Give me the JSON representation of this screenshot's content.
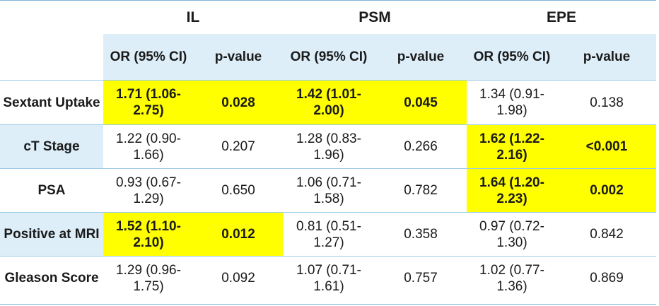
{
  "groups": [
    "IL",
    "PSM",
    "EPE"
  ],
  "subheaders": {
    "or": "OR (95% CI)",
    "p": "p-value"
  },
  "rows": [
    {
      "label": "Sextant Uptake",
      "il_or": "1.71 (1.06-2.75)",
      "il_p": "0.028",
      "psm_or": "1.42 (1.01-2.00)",
      "psm_p": "0.045",
      "epe_or": "1.34 (0.91-1.98)",
      "epe_p": "0.138"
    },
    {
      "label": "cT Stage",
      "il_or": "1.22 (0.90-1.66)",
      "il_p": "0.207",
      "psm_or": "1.28 (0.83-1.96)",
      "psm_p": "0.266",
      "epe_or": "1.62 (1.22-2.16)",
      "epe_p": "<0.001"
    },
    {
      "label": "PSA",
      "il_or": "0.93 (0.67-1.29)",
      "il_p": "0.650",
      "psm_or": "1.06 (0.71-1.58)",
      "psm_p": "0.782",
      "epe_or": "1.64 (1.20-2.23)",
      "epe_p": "0.002"
    },
    {
      "label": "Positive at MRI",
      "il_or": "1.52 (1.10-2.10)",
      "il_p": "0.012",
      "psm_or": "0.81 (0.51-1.27)",
      "psm_p": "0.358",
      "epe_or": "0.97 (0.72-1.30)",
      "epe_p": "0.842"
    },
    {
      "label": "Gleason Score",
      "il_or": "1.29 (0.96-1.75)",
      "il_p": "0.092",
      "psm_or": "1.07 (0.71-1.61)",
      "psm_p": "0.757",
      "epe_or": "1.02 (0.77-1.36)",
      "epe_p": "0.869"
    }
  ],
  "highlight_color": "#ffff00",
  "header_fill": "#ddeef8"
}
